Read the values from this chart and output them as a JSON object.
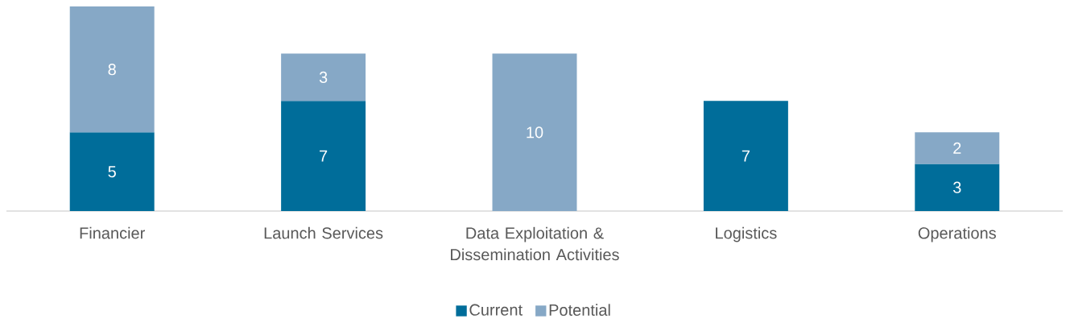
{
  "chart_data": {
    "type": "bar",
    "stacked": true,
    "data_labels": true,
    "legend": "bottom",
    "categories": [
      "Financier",
      "Launch Services",
      "Data Exploitation & Dissemination Activities",
      "Logistics",
      "Operations"
    ],
    "series": [
      {
        "name": "Current",
        "color": "#006d9a",
        "values": [
          5,
          7,
          null,
          7,
          3
        ]
      },
      {
        "name": "Potential",
        "color": "#86a8c6",
        "values": [
          8,
          3,
          10,
          null,
          2
        ]
      }
    ]
  }
}
